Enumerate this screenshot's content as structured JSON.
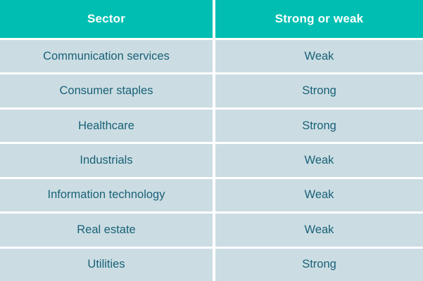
{
  "table": {
    "columns": [
      "Sector",
      "Strong or weak"
    ],
    "rows": [
      {
        "sector": "Communication services",
        "rating": "Weak"
      },
      {
        "sector": "Consumer staples",
        "rating": "Strong"
      },
      {
        "sector": "Healthcare",
        "rating": "Strong"
      },
      {
        "sector": "Industrials",
        "rating": "Weak"
      },
      {
        "sector": "Information technology",
        "rating": "Weak"
      },
      {
        "sector": "Real estate",
        "rating": "Weak"
      },
      {
        "sector": "Utilities",
        "rating": "Strong"
      }
    ]
  },
  "colors": {
    "header_bg": "#00BFB2",
    "header_text": "#FFFFFF",
    "row_bg": "#CBDDE3",
    "cell_text": "#1A6177",
    "gridline": "#FFFFFF"
  }
}
